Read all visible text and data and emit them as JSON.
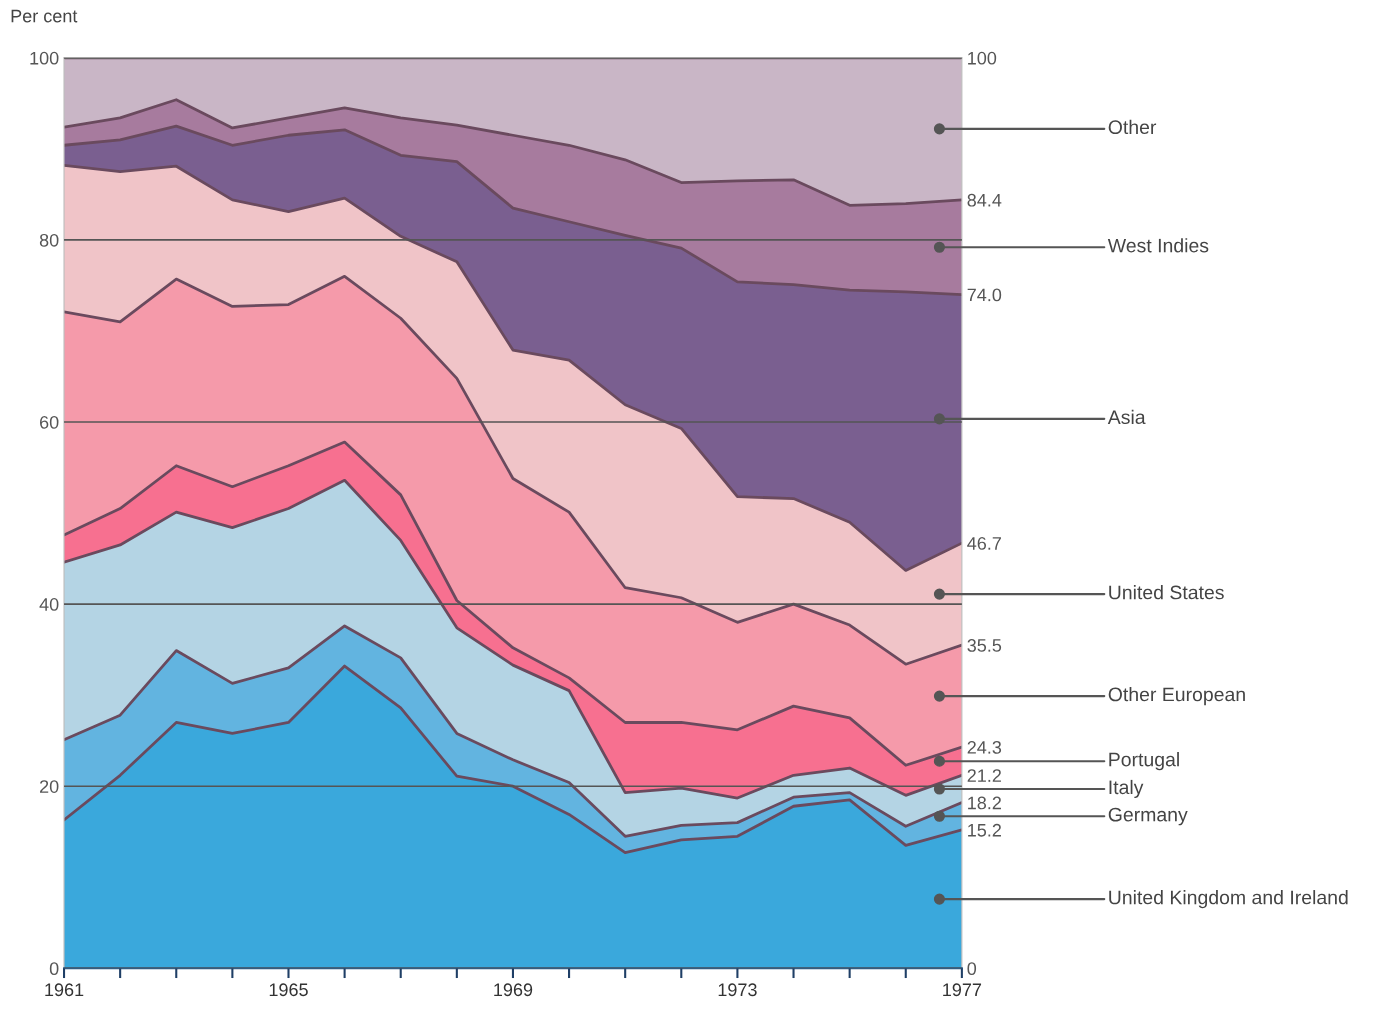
{
  "chart_data": {
    "type": "area",
    "stacked": true,
    "ylabel": "Per cent",
    "x": [
      1961,
      1962,
      1963,
      1964,
      1965,
      1966,
      1967,
      1968,
      1969,
      1970,
      1971,
      1972,
      1973,
      1974,
      1975,
      1976,
      1977
    ],
    "series": [
      {
        "name": "United Kingdom and Ireland",
        "color": "#3aa8dc",
        "values": [
          16.3,
          21.2,
          27.0,
          25.8,
          27.0,
          33.2,
          28.6,
          21.1,
          20.0,
          16.9,
          12.7,
          14.1,
          14.5,
          17.8,
          18.5,
          13.5,
          15.2
        ]
      },
      {
        "name": "Germany",
        "color": "#62b4e0",
        "values": [
          8.8,
          6.6,
          7.9,
          5.5,
          6.0,
          4.4,
          5.5,
          4.7,
          2.9,
          3.5,
          1.8,
          1.6,
          1.5,
          1.0,
          0.8,
          2.1,
          3.0
        ]
      },
      {
        "name": "Italy",
        "color": "#b4d4e4",
        "values": [
          19.5,
          18.7,
          15.2,
          17.1,
          17.5,
          16.0,
          12.9,
          11.6,
          10.4,
          10.1,
          4.8,
          4.1,
          2.7,
          2.4,
          2.7,
          3.4,
          3.0
        ]
      },
      {
        "name": "Portugal",
        "color": "#f77090",
        "values": [
          3.0,
          4.0,
          5.1,
          4.5,
          4.7,
          4.2,
          5.0,
          3.0,
          1.9,
          1.4,
          7.7,
          7.2,
          7.5,
          7.6,
          5.5,
          3.3,
          3.1
        ]
      },
      {
        "name": "Other European",
        "color": "#f59aaa",
        "values": [
          24.5,
          20.5,
          20.5,
          19.8,
          17.7,
          18.2,
          19.4,
          24.4,
          18.6,
          18.2,
          14.8,
          13.7,
          11.8,
          11.2,
          10.2,
          11.1,
          11.2
        ]
      },
      {
        "name": "United States",
        "color": "#f0c4c8",
        "values": [
          16.1,
          16.5,
          12.4,
          11.7,
          10.2,
          8.6,
          9.0,
          12.8,
          14.1,
          16.7,
          20.1,
          18.6,
          13.8,
          11.6,
          11.3,
          10.3,
          11.2
        ]
      },
      {
        "name": "Asia",
        "color": "#7a5f90",
        "values": [
          2.2,
          3.5,
          4.4,
          6.0,
          8.4,
          7.5,
          8.9,
          11.0,
          15.6,
          15.2,
          18.6,
          19.8,
          23.6,
          23.5,
          25.5,
          30.6,
          27.3
        ]
      },
      {
        "name": "West Indies",
        "color": "#a77b9e",
        "values": [
          2.0,
          2.4,
          2.9,
          1.9,
          1.9,
          2.4,
          4.1,
          4.0,
          8.0,
          8.4,
          8.3,
          7.2,
          11.1,
          11.5,
          9.3,
          9.7,
          10.4
        ]
      },
      {
        "name": "Other",
        "color": "#c9b6c6",
        "values": [
          7.6,
          6.6,
          4.6,
          7.7,
          6.6,
          5.5,
          6.6,
          7.4,
          8.5,
          9.6,
          11.2,
          13.7,
          13.5,
          13.4,
          16.2,
          16.0,
          15.6
        ]
      }
    ],
    "xlim": [
      1961,
      1977
    ],
    "xticks": [
      1961,
      {
        "value": 1962,
        "label": null
      },
      {
        "value": 1963,
        "label": null
      },
      {
        "value": 1964,
        "label": null
      },
      1965,
      {
        "value": 1966,
        "label": null
      },
      {
        "value": 1967,
        "label": null
      },
      {
        "value": 1968,
        "label": null
      },
      1969,
      {
        "value": 1970,
        "label": null
      },
      {
        "value": 1971,
        "label": null
      },
      {
        "value": 1972,
        "label": null
      },
      1973,
      {
        "value": 1974,
        "label": null
      },
      {
        "value": 1975,
        "label": null
      },
      {
        "value": 1976,
        "label": null
      },
      1977
    ],
    "ylim": [
      0,
      100
    ],
    "yticks": [
      0,
      20,
      40,
      60,
      80,
      100
    ],
    "y2lim": [
      0,
      100
    ],
    "y2ticks": [
      0,
      15.2,
      18.2,
      21.2,
      24.3,
      35.5,
      46.7,
      {
        "value": 74.0,
        "label": "74.0"
      },
      84.4,
      100
    ],
    "grid": "y",
    "legend": false
  }
}
